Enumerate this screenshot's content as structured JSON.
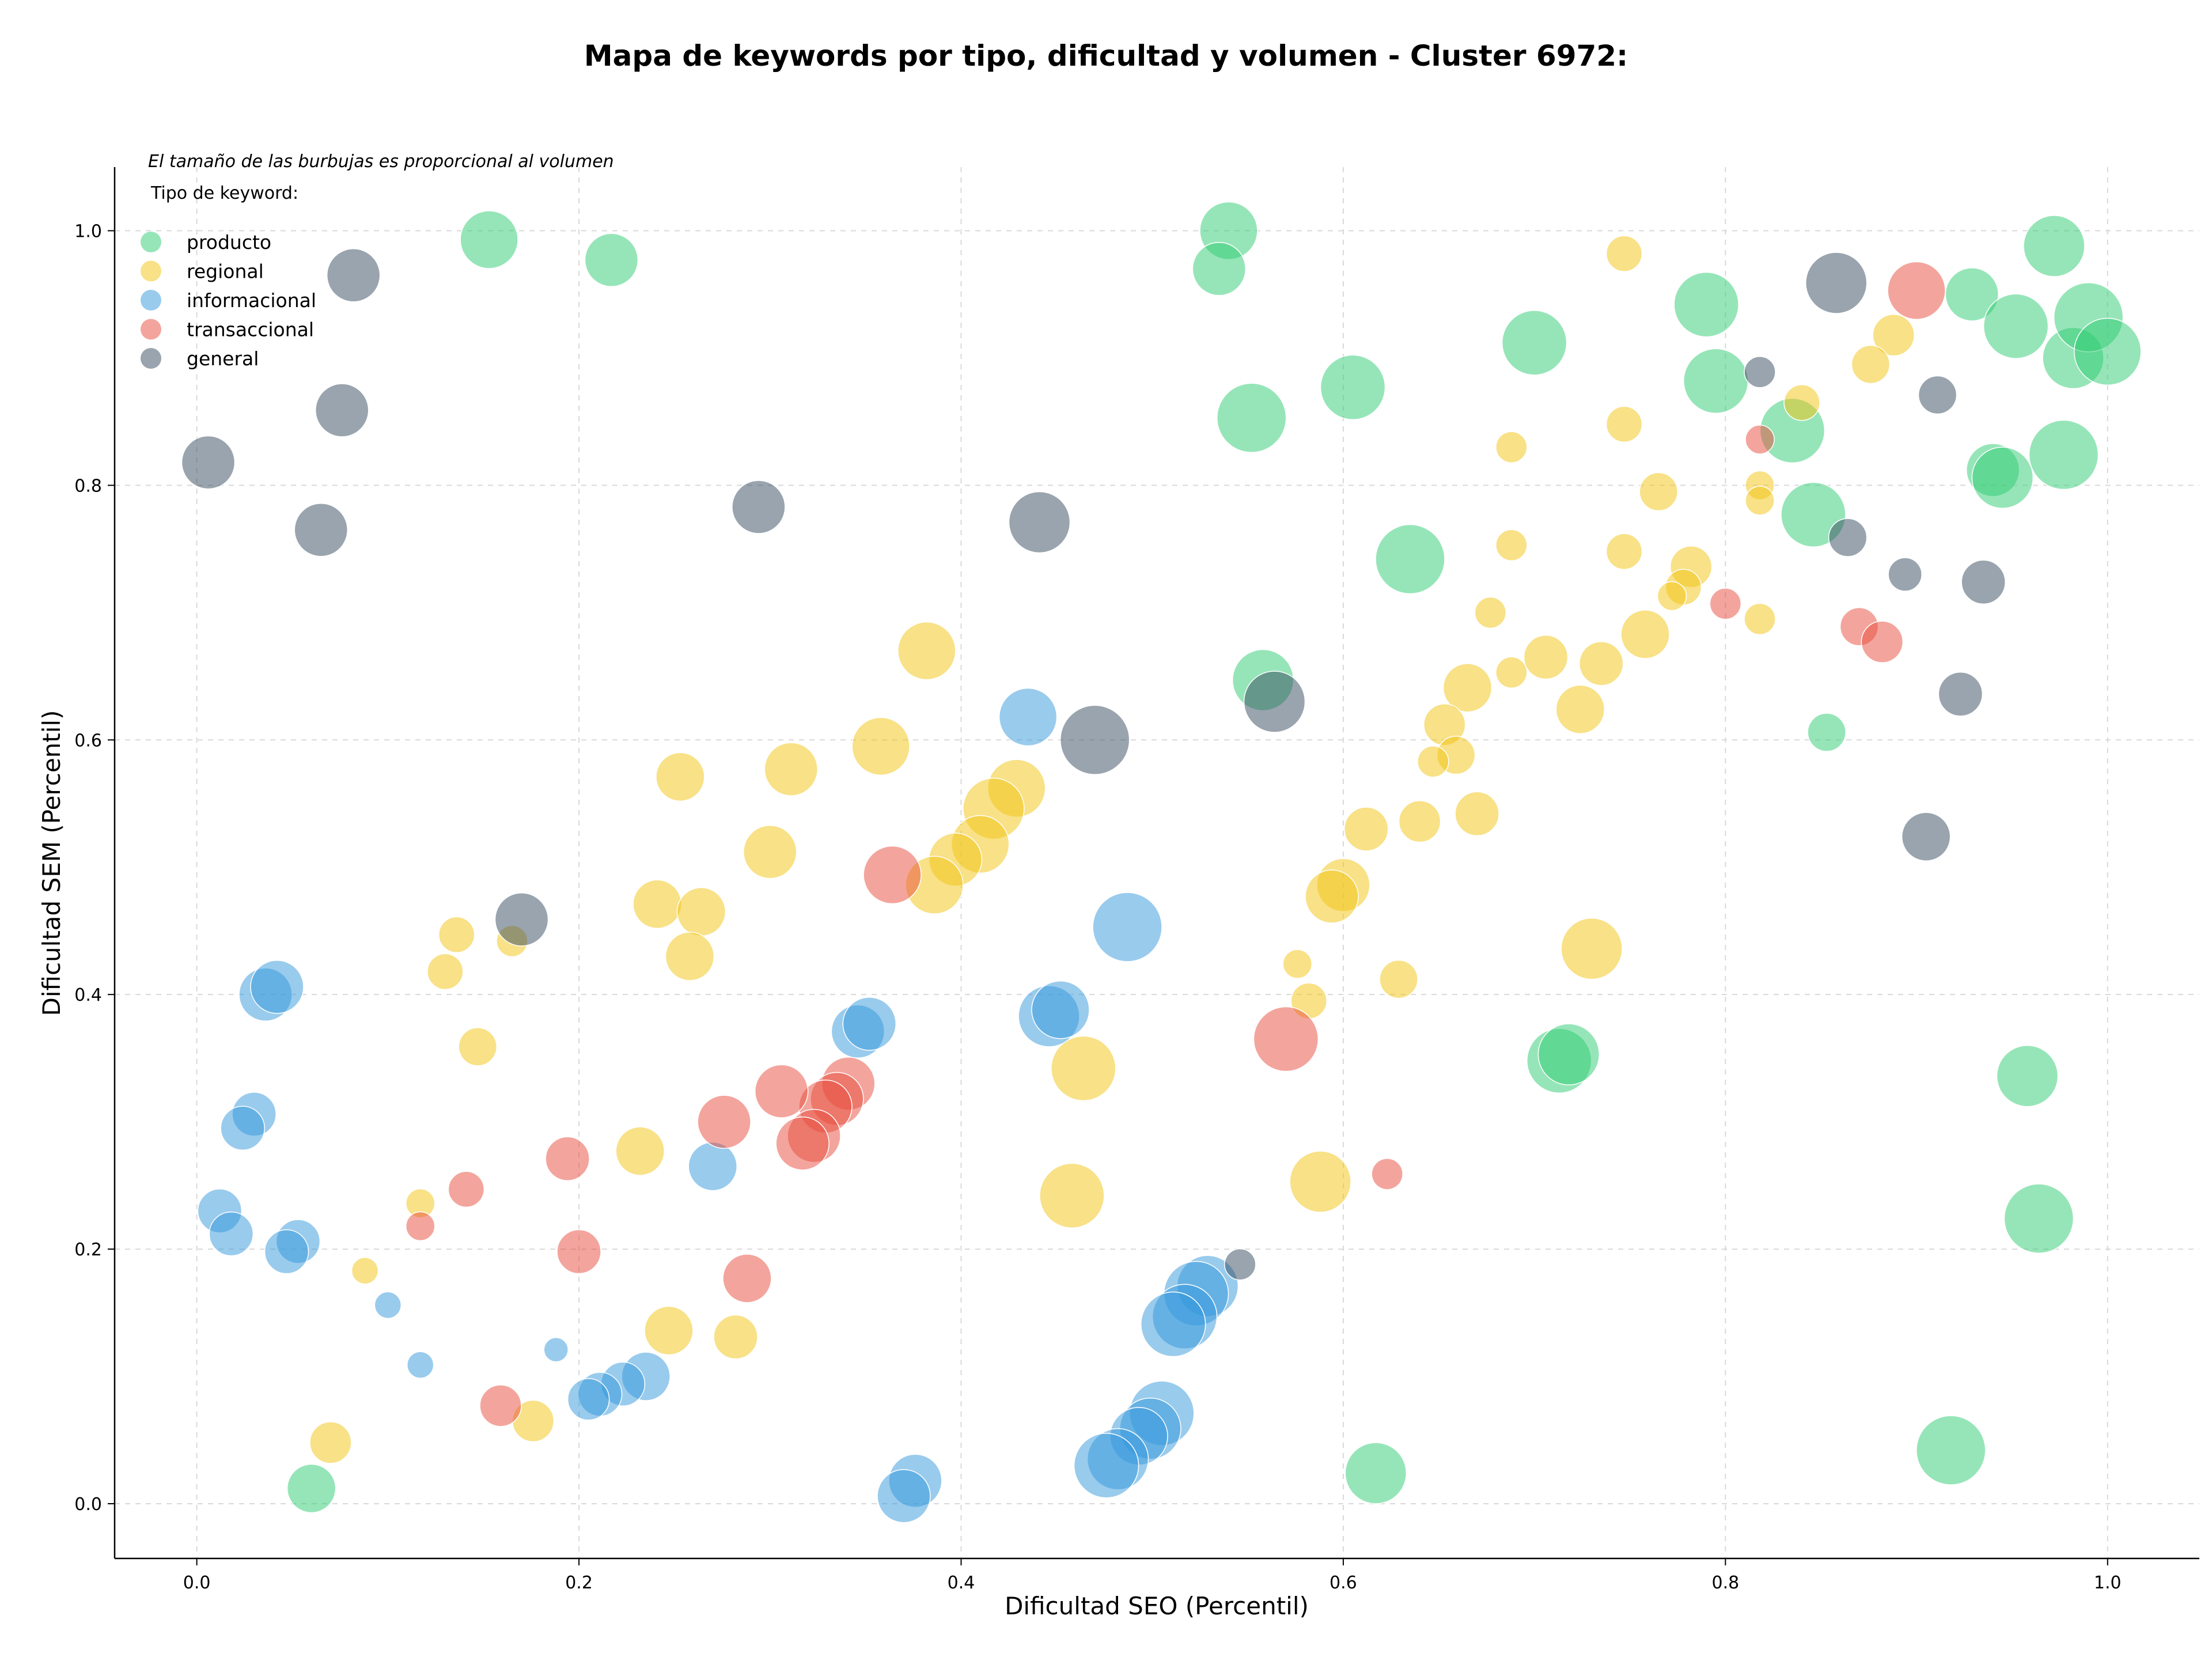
{
  "chart_data": {
    "type": "scatter",
    "title": "Mapa de keywords por tipo, dificultad y volumen - Cluster 6972:",
    "xlabel": "Dificultad SEO (Percentil)",
    "ylabel": "Dificultad SEM (Percentil)",
    "note": "El tamaño de las burbujas es proporcional al volumen",
    "legend_title": "Tipo de keyword:",
    "legend_position": "top-left",
    "grid": true,
    "xlim": [
      -0.043,
      1.048
    ],
    "ylim": [
      -0.043,
      1.05
    ],
    "xticks": [
      "0.0",
      "0.2",
      "0.4",
      "0.6",
      "0.8",
      "1.0"
    ],
    "yticks": [
      "0.0",
      "0.2",
      "0.4",
      "0.6",
      "0.8",
      "1.0"
    ],
    "series": [
      {
        "name": "producto",
        "color": "#2ecc71",
        "points": [
          {
            "x": 0.153,
            "y": 0.993,
            "r": 50
          },
          {
            "x": 0.217,
            "y": 0.977,
            "r": 46
          },
          {
            "x": 0.54,
            "y": 1.0,
            "r": 50
          },
          {
            "x": 0.535,
            "y": 0.97,
            "r": 46
          },
          {
            "x": 0.552,
            "y": 0.853,
            "r": 60
          },
          {
            "x": 0.605,
            "y": 0.877,
            "r": 56
          },
          {
            "x": 0.7,
            "y": 0.912,
            "r": 56
          },
          {
            "x": 0.79,
            "y": 0.942,
            "r": 56
          },
          {
            "x": 0.795,
            "y": 0.882,
            "r": 56
          },
          {
            "x": 0.835,
            "y": 0.843,
            "r": 56
          },
          {
            "x": 0.846,
            "y": 0.777,
            "r": 56
          },
          {
            "x": 0.929,
            "y": 0.95,
            "r": 46
          },
          {
            "x": 0.952,
            "y": 0.925,
            "r": 56
          },
          {
            "x": 0.972,
            "y": 0.988,
            "r": 53
          },
          {
            "x": 0.977,
            "y": 0.824,
            "r": 60
          },
          {
            "x": 0.982,
            "y": 0.9,
            "r": 53
          },
          {
            "x": 0.99,
            "y": 0.932,
            "r": 60
          },
          {
            "x": 1.0,
            "y": 0.905,
            "r": 58
          },
          {
            "x": 0.94,
            "y": 0.812,
            "r": 46
          },
          {
            "x": 0.945,
            "y": 0.806,
            "r": 53
          },
          {
            "x": 0.635,
            "y": 0.742,
            "r": 60
          },
          {
            "x": 0.558,
            "y": 0.647,
            "r": 53
          },
          {
            "x": 0.853,
            "y": 0.606,
            "r": 33
          },
          {
            "x": 0.713,
            "y": 0.348,
            "r": 56
          },
          {
            "x": 0.718,
            "y": 0.353,
            "r": 53
          },
          {
            "x": 0.958,
            "y": 0.336,
            "r": 53
          },
          {
            "x": 0.964,
            "y": 0.224,
            "r": 60
          },
          {
            "x": 0.918,
            "y": 0.042,
            "r": 60
          },
          {
            "x": 0.617,
            "y": 0.024,
            "r": 53
          },
          {
            "x": 0.06,
            "y": 0.012,
            "r": 42
          }
        ]
      },
      {
        "name": "regional",
        "color": "#f1c40f",
        "points": [
          {
            "x": 0.747,
            "y": 0.982,
            "r": 31
          },
          {
            "x": 0.888,
            "y": 0.918,
            "r": 36
          },
          {
            "x": 0.876,
            "y": 0.895,
            "r": 33
          },
          {
            "x": 0.84,
            "y": 0.865,
            "r": 31
          },
          {
            "x": 0.747,
            "y": 0.848,
            "r": 31
          },
          {
            "x": 0.688,
            "y": 0.83,
            "r": 27
          },
          {
            "x": 0.818,
            "y": 0.8,
            "r": 25
          },
          {
            "x": 0.818,
            "y": 0.788,
            "r": 25
          },
          {
            "x": 0.765,
            "y": 0.795,
            "r": 33
          },
          {
            "x": 0.747,
            "y": 0.748,
            "r": 31
          },
          {
            "x": 0.782,
            "y": 0.736,
            "r": 36
          },
          {
            "x": 0.778,
            "y": 0.72,
            "r": 31
          },
          {
            "x": 0.772,
            "y": 0.713,
            "r": 25
          },
          {
            "x": 0.688,
            "y": 0.753,
            "r": 27
          },
          {
            "x": 0.677,
            "y": 0.7,
            "r": 27
          },
          {
            "x": 0.818,
            "y": 0.695,
            "r": 27
          },
          {
            "x": 0.758,
            "y": 0.683,
            "r": 42
          },
          {
            "x": 0.735,
            "y": 0.66,
            "r": 38
          },
          {
            "x": 0.706,
            "y": 0.665,
            "r": 38
          },
          {
            "x": 0.688,
            "y": 0.653,
            "r": 27
          },
          {
            "x": 0.665,
            "y": 0.641,
            "r": 42
          },
          {
            "x": 0.724,
            "y": 0.624,
            "r": 42
          },
          {
            "x": 0.653,
            "y": 0.612,
            "r": 36
          },
          {
            "x": 0.659,
            "y": 0.588,
            "r": 33
          },
          {
            "x": 0.647,
            "y": 0.583,
            "r": 27
          },
          {
            "x": 0.67,
            "y": 0.542,
            "r": 38
          },
          {
            "x": 0.64,
            "y": 0.536,
            "r": 36
          },
          {
            "x": 0.612,
            "y": 0.53,
            "r": 38
          },
          {
            "x": 0.6,
            "y": 0.486,
            "r": 46
          },
          {
            "x": 0.594,
            "y": 0.477,
            "r": 46
          },
          {
            "x": 0.73,
            "y": 0.436,
            "r": 53
          },
          {
            "x": 0.629,
            "y": 0.412,
            "r": 33
          },
          {
            "x": 0.576,
            "y": 0.424,
            "r": 25
          },
          {
            "x": 0.582,
            "y": 0.395,
            "r": 31
          },
          {
            "x": 0.588,
            "y": 0.253,
            "r": 53
          },
          {
            "x": 0.382,
            "y": 0.67,
            "r": 50
          },
          {
            "x": 0.358,
            "y": 0.595,
            "r": 50
          },
          {
            "x": 0.311,
            "y": 0.577,
            "r": 46
          },
          {
            "x": 0.253,
            "y": 0.571,
            "r": 42
          },
          {
            "x": 0.3,
            "y": 0.512,
            "r": 46
          },
          {
            "x": 0.429,
            "y": 0.562,
            "r": 50
          },
          {
            "x": 0.417,
            "y": 0.546,
            "r": 53
          },
          {
            "x": 0.41,
            "y": 0.518,
            "r": 50
          },
          {
            "x": 0.397,
            "y": 0.506,
            "r": 46
          },
          {
            "x": 0.386,
            "y": 0.486,
            "r": 50
          },
          {
            "x": 0.241,
            "y": 0.471,
            "r": 42
          },
          {
            "x": 0.264,
            "y": 0.465,
            "r": 42
          },
          {
            "x": 0.258,
            "y": 0.43,
            "r": 42
          },
          {
            "x": 0.136,
            "y": 0.447,
            "r": 31
          },
          {
            "x": 0.165,
            "y": 0.442,
            "r": 27
          },
          {
            "x": 0.13,
            "y": 0.418,
            "r": 31
          },
          {
            "x": 0.147,
            "y": 0.359,
            "r": 33
          },
          {
            "x": 0.464,
            "y": 0.342,
            "r": 56
          },
          {
            "x": 0.458,
            "y": 0.242,
            "r": 56
          },
          {
            "x": 0.232,
            "y": 0.277,
            "r": 42
          },
          {
            "x": 0.117,
            "y": 0.236,
            "r": 25
          },
          {
            "x": 0.088,
            "y": 0.183,
            "r": 23
          },
          {
            "x": 0.247,
            "y": 0.136,
            "r": 42
          },
          {
            "x": 0.282,
            "y": 0.131,
            "r": 38
          },
          {
            "x": 0.176,
            "y": 0.065,
            "r": 36
          },
          {
            "x": 0.07,
            "y": 0.048,
            "r": 36
          }
        ]
      },
      {
        "name": "informacional",
        "color": "#3498db",
        "points": [
          {
            "x": 0.435,
            "y": 0.618,
            "r": 50
          },
          {
            "x": 0.487,
            "y": 0.453,
            "r": 60
          },
          {
            "x": 0.446,
            "y": 0.383,
            "r": 53
          },
          {
            "x": 0.452,
            "y": 0.388,
            "r": 50
          },
          {
            "x": 0.346,
            "y": 0.371,
            "r": 46
          },
          {
            "x": 0.352,
            "y": 0.377,
            "r": 46
          },
          {
            "x": 0.27,
            "y": 0.265,
            "r": 42
          },
          {
            "x": 0.036,
            "y": 0.4,
            "r": 46
          },
          {
            "x": 0.042,
            "y": 0.406,
            "r": 46
          },
          {
            "x": 0.03,
            "y": 0.306,
            "r": 38
          },
          {
            "x": 0.024,
            "y": 0.295,
            "r": 38
          },
          {
            "x": 0.012,
            "y": 0.23,
            "r": 38
          },
          {
            "x": 0.018,
            "y": 0.212,
            "r": 38
          },
          {
            "x": 0.053,
            "y": 0.206,
            "r": 38
          },
          {
            "x": 0.047,
            "y": 0.198,
            "r": 38
          },
          {
            "x": 0.1,
            "y": 0.156,
            "r": 23
          },
          {
            "x": 0.117,
            "y": 0.109,
            "r": 23
          },
          {
            "x": 0.188,
            "y": 0.121,
            "r": 21
          },
          {
            "x": 0.235,
            "y": 0.1,
            "r": 42
          },
          {
            "x": 0.223,
            "y": 0.094,
            "r": 38
          },
          {
            "x": 0.211,
            "y": 0.086,
            "r": 38
          },
          {
            "x": 0.205,
            "y": 0.082,
            "r": 36
          },
          {
            "x": 0.529,
            "y": 0.171,
            "r": 53
          },
          {
            "x": 0.523,
            "y": 0.165,
            "r": 56
          },
          {
            "x": 0.517,
            "y": 0.147,
            "r": 56
          },
          {
            "x": 0.511,
            "y": 0.141,
            "r": 56
          },
          {
            "x": 0.505,
            "y": 0.071,
            "r": 56
          },
          {
            "x": 0.499,
            "y": 0.059,
            "r": 53
          },
          {
            "x": 0.493,
            "y": 0.053,
            "r": 50
          },
          {
            "x": 0.482,
            "y": 0.035,
            "r": 53
          },
          {
            "x": 0.476,
            "y": 0.03,
            "r": 56
          },
          {
            "x": 0.376,
            "y": 0.018,
            "r": 46
          },
          {
            "x": 0.37,
            "y": 0.006,
            "r": 46
          }
        ]
      },
      {
        "name": "transaccional",
        "color": "#e74c3c",
        "points": [
          {
            "x": 0.9,
            "y": 0.953,
            "r": 50
          },
          {
            "x": 0.818,
            "y": 0.836,
            "r": 25
          },
          {
            "x": 0.8,
            "y": 0.707,
            "r": 27
          },
          {
            "x": 0.87,
            "y": 0.689,
            "r": 33
          },
          {
            "x": 0.882,
            "y": 0.677,
            "r": 36
          },
          {
            "x": 0.364,
            "y": 0.494,
            "r": 50
          },
          {
            "x": 0.57,
            "y": 0.365,
            "r": 56
          },
          {
            "x": 0.623,
            "y": 0.259,
            "r": 27
          },
          {
            "x": 0.341,
            "y": 0.33,
            "r": 46
          },
          {
            "x": 0.335,
            "y": 0.318,
            "r": 46
          },
          {
            "x": 0.329,
            "y": 0.312,
            "r": 46
          },
          {
            "x": 0.306,
            "y": 0.324,
            "r": 46
          },
          {
            "x": 0.323,
            "y": 0.289,
            "r": 46
          },
          {
            "x": 0.317,
            "y": 0.283,
            "r": 46
          },
          {
            "x": 0.276,
            "y": 0.3,
            "r": 46
          },
          {
            "x": 0.194,
            "y": 0.271,
            "r": 38
          },
          {
            "x": 0.141,
            "y": 0.247,
            "r": 31
          },
          {
            "x": 0.117,
            "y": 0.218,
            "r": 25
          },
          {
            "x": 0.2,
            "y": 0.198,
            "r": 38
          },
          {
            "x": 0.288,
            "y": 0.177,
            "r": 42
          },
          {
            "x": 0.159,
            "y": 0.077,
            "r": 36
          }
        ]
      },
      {
        "name": "general",
        "color": "#34495e",
        "points": [
          {
            "x": 0.082,
            "y": 0.965,
            "r": 46
          },
          {
            "x": 0.076,
            "y": 0.859,
            "r": 46
          },
          {
            "x": 0.006,
            "y": 0.818,
            "r": 46
          },
          {
            "x": 0.065,
            "y": 0.765,
            "r": 46
          },
          {
            "x": 0.294,
            "y": 0.783,
            "r": 46
          },
          {
            "x": 0.441,
            "y": 0.771,
            "r": 53
          },
          {
            "x": 0.47,
            "y": 0.6,
            "r": 60
          },
          {
            "x": 0.564,
            "y": 0.63,
            "r": 53
          },
          {
            "x": 0.17,
            "y": 0.459,
            "r": 46
          },
          {
            "x": 0.858,
            "y": 0.959,
            "r": 53
          },
          {
            "x": 0.818,
            "y": 0.889,
            "r": 27
          },
          {
            "x": 0.911,
            "y": 0.871,
            "r": 33
          },
          {
            "x": 0.864,
            "y": 0.759,
            "r": 33
          },
          {
            "x": 0.894,
            "y": 0.73,
            "r": 29
          },
          {
            "x": 0.935,
            "y": 0.724,
            "r": 38
          },
          {
            "x": 0.923,
            "y": 0.636,
            "r": 38
          },
          {
            "x": 0.905,
            "y": 0.524,
            "r": 42
          },
          {
            "x": 0.546,
            "y": 0.188,
            "r": 27
          }
        ]
      }
    ]
  }
}
